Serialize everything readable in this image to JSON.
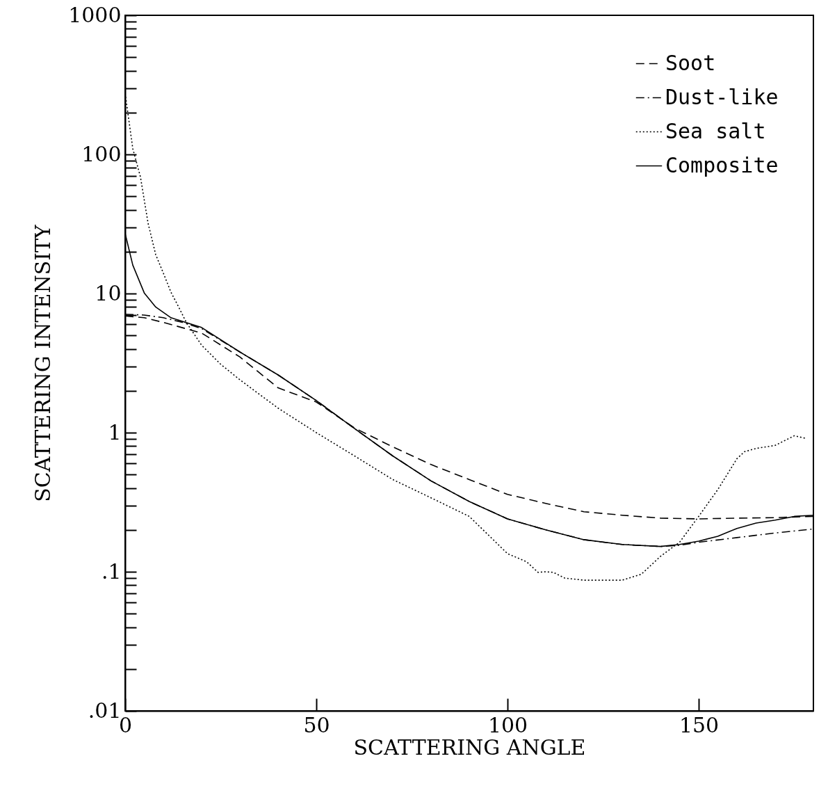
{
  "chart_data": {
    "type": "line",
    "xlabel": "SCATTERING ANGLE",
    "ylabel": "SCATTERING INTENSITY",
    "log": "y",
    "grid": false,
    "legend": "top right",
    "marker": "none",
    "xlim": [
      0,
      180
    ],
    "ylim": [
      0.01,
      1000
    ],
    "xticks": [
      0,
      50,
      100,
      150
    ],
    "yticks": [
      {
        "value": 0.01,
        "label": ".01"
      },
      {
        "value": 0.02,
        "label": null
      },
      {
        "value": 0.03,
        "label": null
      },
      {
        "value": 0.04,
        "label": null
      },
      {
        "value": 0.05,
        "label": null
      },
      {
        "value": 0.06,
        "label": null
      },
      {
        "value": 0.07,
        "label": null
      },
      {
        "value": 0.08,
        "label": null
      },
      {
        "value": 0.09,
        "label": null
      },
      {
        "value": 0.1,
        "label": ".1"
      },
      {
        "value": 0.2,
        "label": null
      },
      {
        "value": 0.3,
        "label": null
      },
      {
        "value": 0.4,
        "label": null
      },
      {
        "value": 0.5,
        "label": null
      },
      {
        "value": 0.6,
        "label": null
      },
      {
        "value": 0.7,
        "label": null
      },
      {
        "value": 0.8,
        "label": null
      },
      {
        "value": 0.9,
        "label": null
      },
      1,
      {
        "value": 2,
        "label": null
      },
      {
        "value": 3,
        "label": null
      },
      {
        "value": 4,
        "label": null
      },
      {
        "value": 5,
        "label": null
      },
      {
        "value": 6,
        "label": null
      },
      {
        "value": 7,
        "label": null
      },
      {
        "value": 8,
        "label": null
      },
      {
        "value": 9,
        "label": null
      },
      10,
      {
        "value": 20,
        "label": null
      },
      {
        "value": 30,
        "label": null
      },
      {
        "value": 40,
        "label": null
      },
      {
        "value": 50,
        "label": null
      },
      {
        "value": 60,
        "label": null
      },
      {
        "value": 70,
        "label": null
      },
      {
        "value": 80,
        "label": null
      },
      {
        "value": 90,
        "label": null
      },
      100,
      {
        "value": 200,
        "label": null
      },
      {
        "value": 300,
        "label": null
      },
      {
        "value": 400,
        "label": null
      },
      {
        "value": 500,
        "label": null
      },
      {
        "value": 600,
        "label": null
      },
      {
        "value": 700,
        "label": null
      },
      {
        "value": 800,
        "label": null
      },
      {
        "value": 900,
        "label": null
      },
      1000
    ],
    "series": [
      {
        "name": "Soot",
        "color": "#000000",
        "line_style": "dashed",
        "x": [
          0,
          5,
          10,
          20,
          30,
          40,
          50,
          60,
          70,
          80,
          90,
          100,
          110,
          120,
          130,
          140,
          150,
          160,
          170,
          180
        ],
        "values": [
          6.9,
          6.7,
          6.2,
          5.2,
          3.5,
          2.1,
          1.66,
          1.08,
          0.79,
          0.59,
          0.46,
          0.36,
          0.31,
          0.27,
          0.255,
          0.243,
          0.24,
          0.243,
          0.245,
          0.25
        ]
      },
      {
        "name": "Dust-like",
        "color": "#000000",
        "line_style": "dashdot",
        "x": [
          0,
          5,
          10,
          15,
          20,
          30,
          40,
          50,
          60,
          70,
          80,
          90,
          100,
          110,
          120,
          130,
          140,
          145,
          150,
          160,
          170,
          180
        ],
        "values": [
          7.1,
          7,
          6.7,
          6.2,
          5.6,
          3.8,
          2.6,
          1.7,
          1.07,
          0.68,
          0.45,
          0.32,
          0.24,
          0.2,
          0.17,
          0.157,
          0.152,
          0.155,
          0.163,
          0.176,
          0.19,
          0.203
        ]
      },
      {
        "name": "Sea salt",
        "color": "#000000",
        "line_style": "dotted",
        "x": [
          0,
          2,
          4,
          6,
          8,
          10,
          12,
          14,
          16,
          20,
          25,
          30,
          40,
          50,
          60,
          70,
          80,
          90,
          100,
          105,
          108,
          110,
          112,
          115,
          120,
          130,
          135,
          140,
          145,
          150,
          155,
          160,
          162,
          165,
          170,
          175,
          178
        ],
        "values": [
          275,
          110,
          69,
          32,
          19,
          14,
          10.2,
          8,
          6.2,
          4.25,
          3.1,
          2.4,
          1.5,
          1,
          0.68,
          0.46,
          0.34,
          0.25,
          0.135,
          0.118,
          0.099,
          0.1,
          0.099,
          0.09,
          0.087,
          0.087,
          0.096,
          0.129,
          0.163,
          0.25,
          0.39,
          0.65,
          0.73,
          0.77,
          0.81,
          0.95,
          0.91
        ]
      },
      {
        "name": "Composite",
        "color": "#000000",
        "line_style": "solid",
        "x": [
          0,
          2,
          5,
          8,
          12,
          20,
          30,
          40,
          50,
          60,
          70,
          80,
          90,
          100,
          110,
          120,
          130,
          140,
          145,
          150,
          155,
          160,
          165,
          170,
          175,
          180
        ],
        "values": [
          27,
          16,
          10.1,
          8,
          6.7,
          5.7,
          3.8,
          2.6,
          1.7,
          1.07,
          0.68,
          0.45,
          0.32,
          0.24,
          0.2,
          0.17,
          0.157,
          0.152,
          0.157,
          0.166,
          0.18,
          0.205,
          0.224,
          0.235,
          0.25,
          0.255
        ]
      }
    ]
  }
}
